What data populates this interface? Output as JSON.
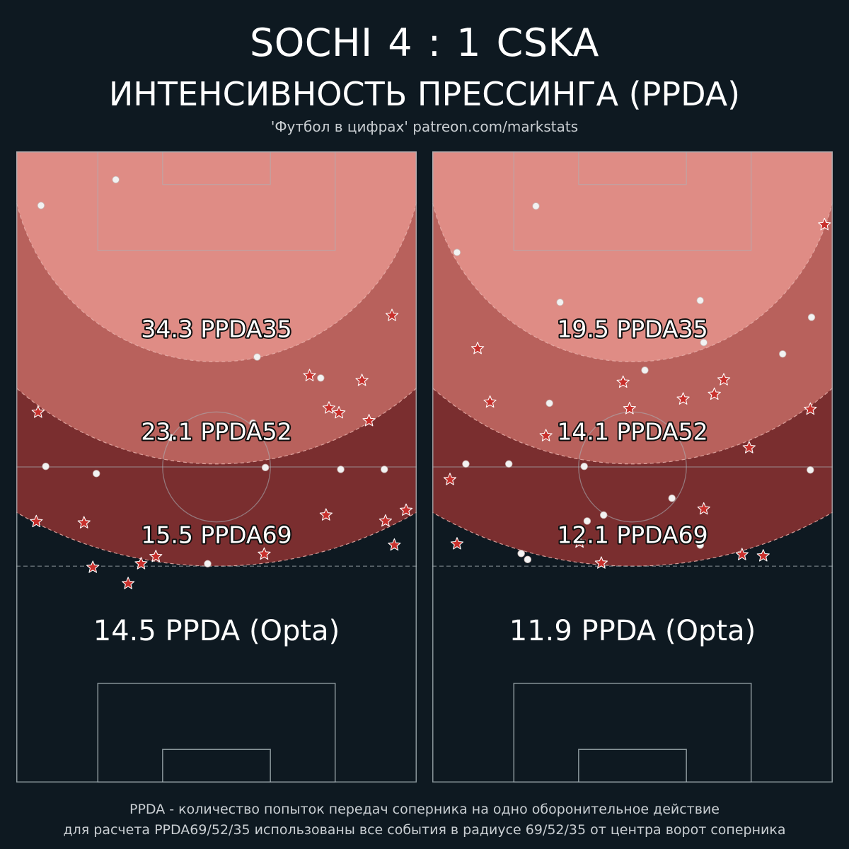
{
  "header": {
    "title": "SOCHI  4 : 1  CSKA",
    "subtitle": "ИНТЕНСИВНОСТЬ ПРЕССИНГА (PPDA)",
    "credit": "'Футбол в цифрах' patreon.com/markstats"
  },
  "footer": {
    "line1": "PPDA - количество попыток передач соперника на одно оборонительное действие",
    "line2": "для расчета PPDA69/52/35 использованы все события в радиусе 69/52/35 от центра ворот соперника"
  },
  "colors": {
    "background": "#0e1921",
    "zone35": "#df8c85",
    "zone52": "#b8615c",
    "zone69": "#7a2e2f",
    "pass_marker": "#f2f2f2",
    "defensive_action_marker": "#c8302c",
    "pitch_lines": "#a9b4b9"
  },
  "chart_data": {
    "type": "scatter",
    "description_units": "pitch coordinates: x 0-68 across, y 0-105 from opponent goal line (top)",
    "zones": [
      {
        "key": "ppda35",
        "radius": 35,
        "color_key": "zone35"
      },
      {
        "key": "ppda52",
        "radius": 52,
        "color_key": "zone52"
      },
      {
        "key": "ppda69",
        "radius": 69,
        "color_key": "zone69"
      }
    ],
    "panels": [
      {
        "labels": {
          "ppda35": "34.3 PPDA35",
          "ppda52": "23.1 PPDA52",
          "ppda69": "15.5 PPDA69",
          "opta": "14.5 PPDA (Opta)"
        },
        "passes": [
          [
            4.2,
            9.0
          ],
          [
            16.9,
            4.7
          ],
          [
            40.9,
            34.2
          ],
          [
            51.7,
            37.7
          ],
          [
            40.2,
            45.2
          ],
          [
            5.0,
            52.4
          ],
          [
            13.6,
            53.6
          ],
          [
            42.3,
            52.6
          ],
          [
            55.1,
            52.9
          ],
          [
            62.5,
            52.9
          ],
          [
            26.2,
            47.6
          ],
          [
            32.5,
            68.6
          ]
        ],
        "defensive_actions": [
          [
            63.8,
            27.3
          ],
          [
            49.8,
            37.3
          ],
          [
            58.7,
            38.1
          ],
          [
            53.1,
            42.7
          ],
          [
            54.8,
            43.5
          ],
          [
            59.9,
            44.8
          ],
          [
            3.7,
            43.4
          ],
          [
            3.4,
            61.6
          ],
          [
            11.5,
            61.8
          ],
          [
            52.6,
            60.5
          ],
          [
            62.7,
            61.5
          ],
          [
            66.2,
            59.7
          ],
          [
            64.2,
            65.5
          ],
          [
            23.7,
            67.4
          ],
          [
            21.2,
            68.6
          ],
          [
            13.0,
            69.2
          ],
          [
            42.1,
            67.0
          ],
          [
            19.0,
            71.9
          ]
        ]
      },
      {
        "labels": {
          "ppda35": "19.5 PPDA35",
          "ppda52": "14.1 PPDA52",
          "ppda69": "12.1 PPDA69",
          "opta": "11.9 PPDA (Opta)"
        },
        "passes": [
          [
            17.6,
            9.1
          ],
          [
            4.2,
            16.8
          ],
          [
            21.7,
            25.1
          ],
          [
            45.5,
            24.8
          ],
          [
            64.4,
            27.6
          ],
          [
            46.1,
            31.8
          ],
          [
            59.5,
            33.7
          ],
          [
            36.1,
            36.4
          ],
          [
            19.9,
            41.9
          ],
          [
            5.7,
            52.0
          ],
          [
            13.0,
            52.0
          ],
          [
            25.8,
            52.4
          ],
          [
            64.2,
            53.0
          ],
          [
            40.7,
            57.7
          ],
          [
            29.1,
            60.5
          ],
          [
            26.3,
            61.5
          ],
          [
            15.1,
            66.9
          ],
          [
            16.2,
            67.9
          ],
          [
            45.5,
            65.5
          ]
        ],
        "defensive_actions": [
          [
            66.6,
            12.2
          ],
          [
            7.7,
            32.8
          ],
          [
            32.4,
            38.4
          ],
          [
            49.5,
            38.0
          ],
          [
            9.8,
            41.7
          ],
          [
            42.6,
            41.2
          ],
          [
            47.9,
            40.4
          ],
          [
            33.5,
            42.8
          ],
          [
            64.2,
            42.9
          ],
          [
            19.3,
            47.3
          ],
          [
            53.8,
            49.3
          ],
          [
            3.0,
            54.6
          ],
          [
            4.2,
            65.3
          ],
          [
            46.1,
            59.5
          ],
          [
            25.0,
            65.0
          ],
          [
            52.6,
            67.1
          ],
          [
            28.7,
            68.5
          ],
          [
            56.2,
            67.3
          ]
        ]
      }
    ]
  }
}
